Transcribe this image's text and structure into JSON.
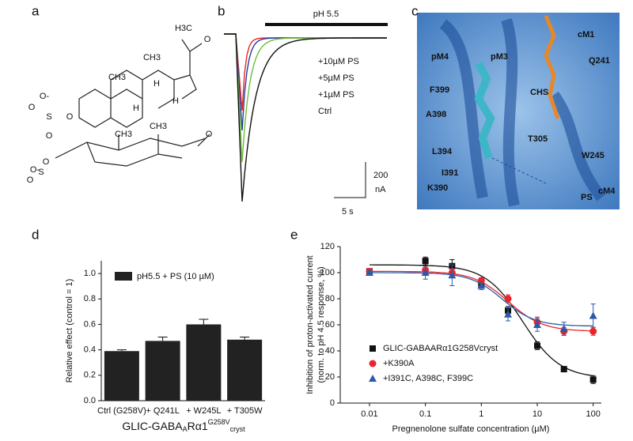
{
  "panels": {
    "a": {
      "letter": "a",
      "atoms": [
        "H3C",
        "O",
        "CH3",
        "CH3",
        "H",
        "H",
        "H",
        "O",
        "O-",
        "S",
        "O",
        "O",
        "O-",
        "O",
        "CH3",
        "CH3",
        "O",
        "S",
        "O"
      ]
    },
    "b": {
      "letter": "b",
      "bar_label": "pH 5.5",
      "traces": [
        {
          "name": "+10µM PS",
          "color": "#e8262b"
        },
        {
          "name": "+5µM PS",
          "color": "#2b3a9a"
        },
        {
          "name": "+1µM PS",
          "color": "#6cbf3a"
        },
        {
          "name": "Ctrl",
          "color": "#111111"
        }
      ],
      "scale_y": [
        "200",
        "nA"
      ],
      "scale_x": "5 s"
    },
    "c": {
      "letter": "c",
      "labels": [
        {
          "text": "pM4",
          "color": "#111"
        },
        {
          "text": "pM3",
          "color": "#111"
        },
        {
          "text": "cM1",
          "color": "#111"
        },
        {
          "text": "CHS",
          "color": "#e5882a"
        },
        {
          "text": "Q241",
          "color": "#2fae5a"
        },
        {
          "text": "F399",
          "color": "#111"
        },
        {
          "text": "A398",
          "color": "#111"
        },
        {
          "text": "T305",
          "color": "#2fae5a"
        },
        {
          "text": "L394",
          "color": "#111"
        },
        {
          "text": "W245",
          "color": "#2fae5a"
        },
        {
          "text": "I391",
          "color": "#111"
        },
        {
          "text": "K390",
          "color": "#111"
        },
        {
          "text": "PS",
          "color": "#4a86c8"
        },
        {
          "text": "cM4",
          "color": "#111"
        }
      ]
    },
    "d": {
      "letter": "d"
    },
    "e": {
      "letter": "e"
    }
  },
  "chart_data": [
    {
      "type": "bar",
      "ylabel": "Relative effect (control = 1)",
      "xtitle": {
        "a": "GLIC-GABA",
        "b": "A",
        "c": "Rα1",
        "d": "G258V",
        "e": "cryst"
      },
      "categories": [
        "Ctrl (G258V)",
        "+ Q241L",
        "+ W245L",
        "+ T305W"
      ],
      "values": [
        0.39,
        0.47,
        0.6,
        0.48
      ],
      "errors": [
        0.01,
        0.03,
        0.04,
        0.02
      ],
      "series_name": "pH5.5 + PS (10 µM)",
      "color": "#222222",
      "ylim": [
        0,
        1.1
      ],
      "yticks": [
        {
          "value": 0,
          "label": "0.0"
        },
        0.2,
        0.4,
        0.6,
        0.8,
        {
          "value": 1,
          "label": "1.0"
        }
      ]
    },
    {
      "type": "scatter",
      "ylabel": [
        "Inhibition of proton-activated current",
        "(norm. to pH 4.5 response, %)"
      ],
      "xlabel": "Pregnenolone sulfate concentration (µM)",
      "xscale": "log",
      "xlim": [
        0.003,
        140
      ],
      "xticks": [
        0.01,
        0.1,
        1,
        10,
        100
      ],
      "ylim": [
        0,
        120
      ],
      "yticks": [
        0,
        20,
        40,
        60,
        80,
        100,
        120
      ],
      "x": [
        0.01,
        0.1,
        0.3,
        1,
        3,
        10,
        30,
        100
      ],
      "series": [
        {
          "name": "GLIC-GABAARα1G258Vcryst",
          "color": "#111111",
          "marker": "square",
          "values": [
            101,
            109,
            105,
            90,
            71,
            44,
            26,
            18
          ],
          "errors": [
            2,
            3,
            5,
            2,
            3,
            3,
            2,
            3
          ],
          "fit": {
            "top": 106,
            "bottom": 19,
            "ec50": 5.5,
            "hill": 1.3
          }
        },
        {
          "name": "+K390A",
          "color": "#e8262b",
          "marker": "circle",
          "values": [
            101,
            102,
            100,
            94,
            80,
            62,
            55,
            55
          ],
          "errors": [
            1,
            2,
            3,
            2,
            3,
            4,
            3,
            3
          ],
          "fit": {
            "top": 101,
            "bottom": 55,
            "ec50": 3,
            "hill": 1.4
          }
        },
        {
          "name": "+I391C, A398C, F399C",
          "color": "#2b5aa8",
          "marker": "triangle",
          "values": [
            100,
            100,
            98,
            90,
            68,
            60,
            57,
            67
          ],
          "errors": [
            2,
            5,
            8,
            3,
            5,
            5,
            5,
            9
          ],
          "fit": {
            "top": 100,
            "bottom": 59,
            "ec50": 2.4,
            "hill": 1.5
          }
        }
      ]
    }
  ]
}
